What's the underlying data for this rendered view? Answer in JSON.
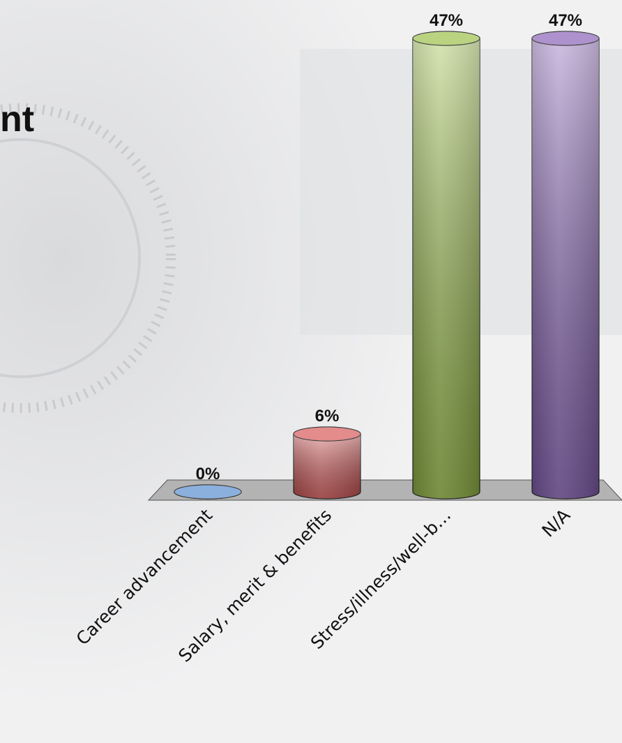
{
  "chart_data": {
    "type": "bar3d",
    "title": "nt",
    "categories": [
      "Career advancement",
      "Salary, merit & benefits",
      "Stress/illness/well-b…",
      "N/A"
    ],
    "values": [
      0,
      6,
      47,
      47
    ],
    "value_labels": [
      "0%",
      "6%",
      "47%",
      "47%"
    ],
    "colors": [
      "#5b8fd0",
      "#d85a5a",
      "#9cc04a",
      "#8a64b8"
    ]
  }
}
